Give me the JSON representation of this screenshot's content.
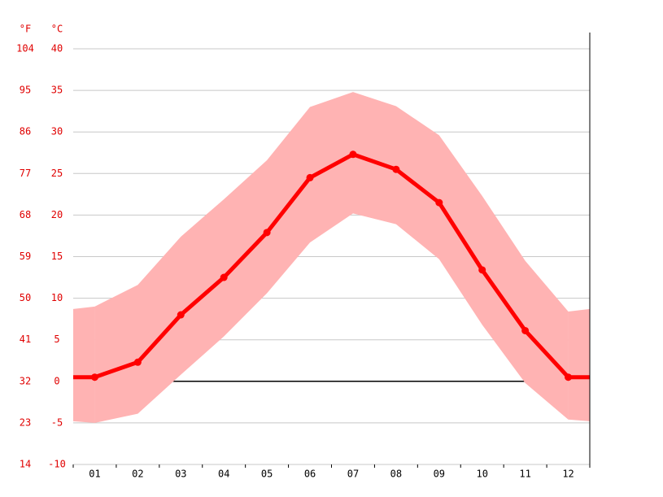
{
  "chart_data": {
    "type": "climate",
    "y_unit_label": "°C",
    "y2_unit_label": "°F",
    "categories": [
      "01",
      "02",
      "03",
      "04",
      "05",
      "06",
      "07",
      "08",
      "09",
      "10",
      "11",
      "12"
    ],
    "series": [
      {
        "color": "#ff0000",
        "values": [
          0.5,
          2.3,
          8.0,
          12.5,
          17.9,
          24.5,
          27.3,
          25.5,
          21.5,
          13.4,
          6.1,
          0.5
        ]
      }
    ],
    "band": {
      "color": "#ffb3b3",
      "upper": [
        9.0,
        11.6,
        17.4,
        21.9,
        26.6,
        33.0,
        34.8,
        33.1,
        29.6,
        22.3,
        14.5,
        8.4
      ],
      "lower": [
        -5.0,
        -3.9,
        0.8,
        5.4,
        10.6,
        16.7,
        20.2,
        18.9,
        14.7,
        6.8,
        -0.2,
        -4.6
      ]
    },
    "ylim": [
      -10,
      40
    ],
    "yticks": [
      -10,
      -5,
      0,
      5,
      10,
      15,
      20,
      25,
      30,
      35,
      40
    ],
    "y2lim": [
      14,
      104
    ],
    "y2ticks": [
      14,
      23,
      32,
      41,
      50,
      59,
      68,
      77,
      86,
      95,
      104
    ],
    "grid": true
  }
}
